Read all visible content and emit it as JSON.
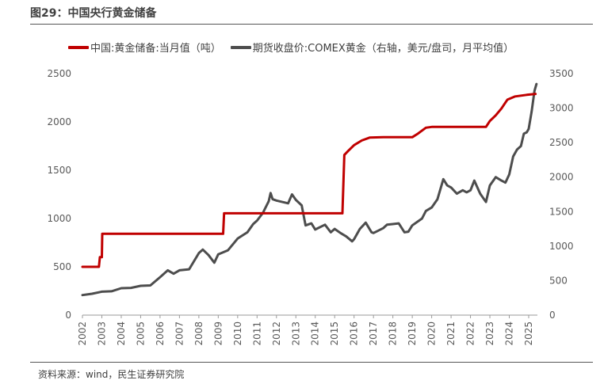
{
  "figure": {
    "title": "图29：中国央行黄金储备",
    "source": "资料来源：wind，民生证券研究院"
  },
  "colors": {
    "reserve": "#c00000",
    "gold": "#4d4d4d",
    "axis": "#9a9a9a"
  },
  "chart_data": {
    "type": "line",
    "xlim": [
      2002.0,
      2025.45
    ],
    "ylim_left": [
      0,
      2500
    ],
    "ylim_right": [
      0,
      3500
    ],
    "yticks_left": [
      "0",
      "500",
      "1000",
      "1500",
      "2000",
      "2500"
    ],
    "yticks_right": [
      "0",
      "500",
      "1000",
      "1500",
      "2000",
      "2500",
      "3000",
      "3500"
    ],
    "xticks": [
      "2002",
      "2003",
      "2004",
      "2005",
      "2006",
      "2007",
      "2008",
      "2009",
      "2010",
      "2011",
      "2012",
      "2013",
      "2014",
      "2015",
      "2016",
      "2017",
      "2018",
      "2019",
      "2020",
      "2021",
      "2022",
      "2023",
      "2024",
      "2025"
    ],
    "series": [
      {
        "name": "中国:黄金储备:当月值（吨）",
        "axis": "left",
        "points": [
          [
            2002.0,
            500
          ],
          [
            2002.85,
            500
          ],
          [
            2002.9,
            600
          ],
          [
            2002.95,
            600
          ],
          [
            2003.0,
            600
          ],
          [
            2003.02,
            842
          ],
          [
            2009.25,
            842
          ],
          [
            2009.3,
            1054
          ],
          [
            2015.4,
            1054
          ],
          [
            2015.5,
            1658
          ],
          [
            2015.7,
            1700
          ],
          [
            2016.0,
            1760
          ],
          [
            2016.4,
            1808
          ],
          [
            2016.8,
            1838
          ],
          [
            2017.5,
            1842
          ],
          [
            2019.0,
            1842
          ],
          [
            2019.3,
            1880
          ],
          [
            2019.7,
            1940
          ],
          [
            2020.0,
            1948
          ],
          [
            2022.8,
            1948
          ],
          [
            2023.0,
            2010
          ],
          [
            2023.3,
            2068
          ],
          [
            2023.6,
            2140
          ],
          [
            2023.9,
            2230
          ],
          [
            2024.3,
            2264
          ],
          [
            2024.9,
            2280
          ],
          [
            2025.35,
            2290
          ]
        ]
      },
      {
        "name": "期货收盘价:COMEX黄金（右轴，美元/盘司，月平均值）",
        "axis": "right",
        "points": [
          [
            2002.0,
            290
          ],
          [
            2002.5,
            310
          ],
          [
            2003.0,
            340
          ],
          [
            2003.5,
            345
          ],
          [
            2004.0,
            390
          ],
          [
            2004.5,
            395
          ],
          [
            2005.0,
            425
          ],
          [
            2005.5,
            430
          ],
          [
            2006.0,
            550
          ],
          [
            2006.4,
            650
          ],
          [
            2006.7,
            600
          ],
          [
            2007.0,
            650
          ],
          [
            2007.5,
            665
          ],
          [
            2008.0,
            900
          ],
          [
            2008.2,
            950
          ],
          [
            2008.5,
            870
          ],
          [
            2008.8,
            760
          ],
          [
            2009.0,
            880
          ],
          [
            2009.5,
            940
          ],
          [
            2010.0,
            1110
          ],
          [
            2010.5,
            1200
          ],
          [
            2010.8,
            1320
          ],
          [
            2011.0,
            1370
          ],
          [
            2011.3,
            1480
          ],
          [
            2011.6,
            1650
          ],
          [
            2011.7,
            1770
          ],
          [
            2011.8,
            1680
          ],
          [
            2012.0,
            1660
          ],
          [
            2012.3,
            1640
          ],
          [
            2012.6,
            1620
          ],
          [
            2012.8,
            1750
          ],
          [
            2013.0,
            1670
          ],
          [
            2013.3,
            1590
          ],
          [
            2013.5,
            1300
          ],
          [
            2013.8,
            1330
          ],
          [
            2014.0,
            1240
          ],
          [
            2014.5,
            1310
          ],
          [
            2014.8,
            1200
          ],
          [
            2015.0,
            1250
          ],
          [
            2015.3,
            1190
          ],
          [
            2015.6,
            1140
          ],
          [
            2015.9,
            1070
          ],
          [
            2016.0,
            1100
          ],
          [
            2016.3,
            1250
          ],
          [
            2016.6,
            1340
          ],
          [
            2016.9,
            1200
          ],
          [
            2017.0,
            1190
          ],
          [
            2017.5,
            1260
          ],
          [
            2017.7,
            1310
          ],
          [
            2018.0,
            1320
          ],
          [
            2018.3,
            1330
          ],
          [
            2018.6,
            1200
          ],
          [
            2018.8,
            1210
          ],
          [
            2019.0,
            1300
          ],
          [
            2019.5,
            1400
          ],
          [
            2019.7,
            1510
          ],
          [
            2020.0,
            1560
          ],
          [
            2020.3,
            1680
          ],
          [
            2020.6,
            1970
          ],
          [
            2020.8,
            1880
          ],
          [
            2021.0,
            1850
          ],
          [
            2021.3,
            1760
          ],
          [
            2021.6,
            1810
          ],
          [
            2021.8,
            1780
          ],
          [
            2022.0,
            1810
          ],
          [
            2022.2,
            1950
          ],
          [
            2022.5,
            1760
          ],
          [
            2022.8,
            1640
          ],
          [
            2023.0,
            1880
          ],
          [
            2023.3,
            2000
          ],
          [
            2023.6,
            1950
          ],
          [
            2023.8,
            1920
          ],
          [
            2024.0,
            2040
          ],
          [
            2024.2,
            2300
          ],
          [
            2024.4,
            2400
          ],
          [
            2024.6,
            2450
          ],
          [
            2024.75,
            2630
          ],
          [
            2024.9,
            2650
          ],
          [
            2025.0,
            2700
          ],
          [
            2025.15,
            2950
          ],
          [
            2025.3,
            3250
          ],
          [
            2025.4,
            3350
          ]
        ]
      }
    ]
  }
}
